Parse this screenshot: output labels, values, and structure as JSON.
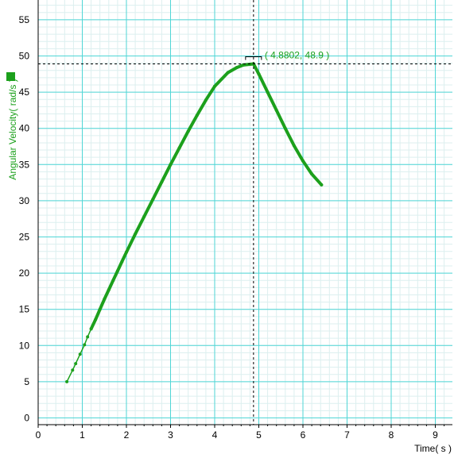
{
  "chart_data": {
    "type": "line",
    "xlabel": "Time( s )",
    "ylabel": "Angular Velocity( rad/s )",
    "xlim": [
      0,
      9.4
    ],
    "ylim": [
      -1,
      58.5
    ],
    "x_ticks": [
      "0",
      "1",
      "2",
      "3",
      "4",
      "5",
      "6",
      "7",
      "8",
      "9"
    ],
    "y_ticks": [
      "0",
      "5",
      "10",
      "15",
      "20",
      "25",
      "30",
      "35",
      "40",
      "45",
      "50",
      "55"
    ],
    "grid": true,
    "legend": "left",
    "series": [
      {
        "color": "#1ca01c",
        "points_up": [
          [
            0.65,
            5.0
          ],
          [
            0.78,
            6.6
          ],
          [
            0.85,
            7.5
          ],
          [
            0.95,
            8.8
          ],
          [
            1.05,
            10.1
          ],
          [
            1.12,
            11.2
          ],
          [
            1.2,
            12.3
          ],
          [
            1.3,
            13.6
          ],
          [
            1.4,
            15.0
          ],
          [
            1.5,
            16.4
          ],
          [
            1.6,
            17.7
          ],
          [
            1.7,
            19.0
          ],
          [
            1.8,
            20.3
          ],
          [
            1.9,
            21.6
          ],
          [
            2.0,
            22.9
          ],
          [
            2.2,
            25.4
          ],
          [
            2.4,
            27.8
          ],
          [
            2.6,
            30.2
          ],
          [
            2.8,
            32.6
          ],
          [
            3.0,
            35.0
          ],
          [
            3.2,
            37.3
          ],
          [
            3.4,
            39.6
          ],
          [
            3.6,
            41.8
          ],
          [
            3.8,
            43.9
          ],
          [
            4.0,
            45.8
          ],
          [
            4.3,
            47.7
          ],
          [
            4.5,
            48.4
          ],
          [
            4.65,
            48.75
          ],
          [
            4.8802,
            48.9
          ]
        ],
        "points_down": [
          [
            4.8802,
            48.9
          ],
          [
            5.0,
            47.5
          ],
          [
            5.2,
            45.0
          ],
          [
            5.4,
            42.5
          ],
          [
            5.6,
            40.0
          ],
          [
            5.8,
            37.6
          ],
          [
            6.0,
            35.5
          ],
          [
            6.2,
            33.7
          ],
          [
            6.42,
            32.2
          ]
        ]
      }
    ],
    "cursor": {
      "x": 4.8802,
      "y": 48.9,
      "label": "( 4.8802, 48.9 )"
    }
  },
  "colors": {
    "series": "#1ca01c",
    "major_grid": "#4fd6d6",
    "minor_grid": "#dcefef",
    "axis": "#000000",
    "cursor": "#000000"
  }
}
